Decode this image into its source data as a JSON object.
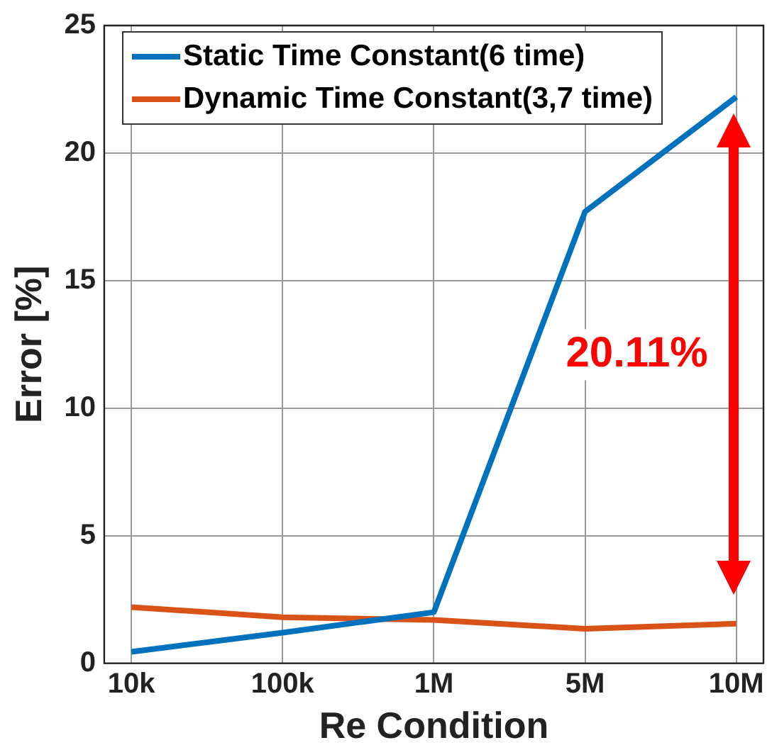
{
  "chart_data": {
    "type": "line",
    "xlabel": "Re Condition",
    "ylabel": "Error [%]",
    "categories": [
      "10k",
      "100k",
      "1M",
      "5M",
      "10M"
    ],
    "series": [
      {
        "name": "Static Time Constant(6 time)",
        "color": "#0072bd",
        "values": [
          0.45,
          1.2,
          2.0,
          17.7,
          22.2
        ]
      },
      {
        "name": "Dynamic Time Constant(3,7 time)",
        "color": "#d95319",
        "values": [
          2.2,
          1.8,
          1.7,
          1.35,
          1.55
        ]
      }
    ],
    "ylim": [
      0,
      25
    ],
    "yticks": [
      0,
      5,
      10,
      15,
      20,
      25
    ],
    "grid": true,
    "legend": "top left",
    "marker": "none",
    "line_style": "solid",
    "annotations": [
      "20.11%"
    ]
  }
}
